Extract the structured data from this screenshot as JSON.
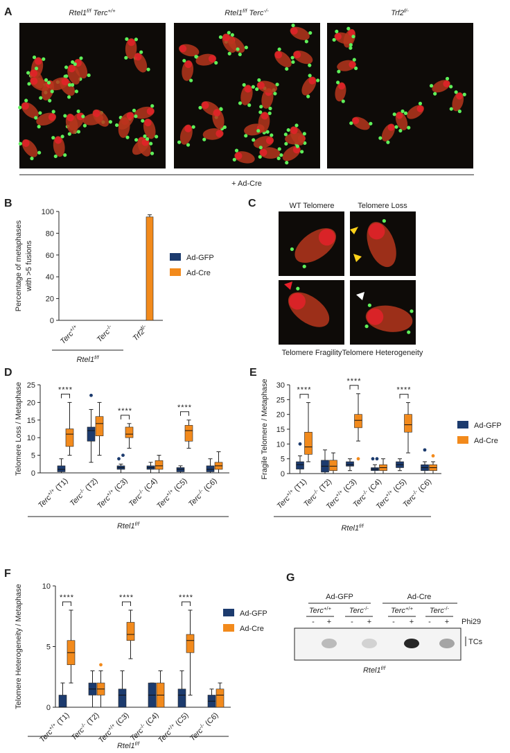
{
  "panels": {
    "A": {
      "label": "A",
      "titles": [
        [
          {
            "i": "Rtel1"
          },
          {
            "sup": "f/f"
          },
          {
            "i": " Terc"
          },
          {
            "sup": "+/+"
          }
        ],
        [
          {
            "i": "Rtel1"
          },
          {
            "sup": "f/f"
          },
          {
            "i": " Terc"
          },
          {
            "sup": "-/-"
          }
        ],
        [
          {
            "i": "Trf2"
          },
          {
            "sup": "f/-"
          }
        ]
      ],
      "treatment": "+ Ad-Cre"
    },
    "C": {
      "label": "C",
      "images": [
        "WT Telomere",
        "Telomere Loss",
        "Telomere Fragility",
        "Telomere Heterogeneity"
      ]
    },
    "G": {
      "label": "G",
      "groups": [
        "Ad-GFP",
        "Ad-Cre"
      ],
      "genotypes": [
        [
          {
            "i": "Terc"
          },
          {
            "sup": "+/+"
          }
        ],
        [
          {
            "i": "Terc"
          },
          {
            "sup": "-/-"
          }
        ],
        [
          {
            "i": "Terc"
          },
          {
            "sup": "+/+"
          }
        ],
        [
          {
            "i": "Terc"
          },
          {
            "sup": "-/-"
          }
        ]
      ],
      "lanes": [
        "-",
        "+",
        "-",
        "+",
        "-",
        "+",
        "-",
        "+"
      ],
      "enzyme": "Phi29",
      "band": "TCs",
      "footer": [
        {
          "i": "Rtel1"
        },
        {
          "sup": "f/f"
        }
      ]
    }
  },
  "chart_data": [
    {
      "type": "bar",
      "panel": "B",
      "ylabel": [
        "Percentage of metaphases",
        "with >5 fusions"
      ],
      "categories": [
        [
          {
            "i": "Terc"
          },
          {
            "sup": "+/+"
          }
        ],
        [
          {
            "i": "Terc"
          },
          {
            "sup": "-/-"
          }
        ],
        [
          {
            "i": "Trf2"
          },
          {
            "sup": "f/-"
          }
        ]
      ],
      "series": [
        {
          "name": "Ad-GFP",
          "color": "#1c3b6e",
          "values": [
            0,
            0,
            0
          ]
        },
        {
          "name": "Ad-Cre",
          "color": "#f28a1c",
          "values": [
            0,
            0,
            95
          ],
          "errors": [
            null,
            null,
            2
          ]
        }
      ],
      "ylim": [
        0,
        100
      ],
      "yticks": [
        0,
        20,
        40,
        60,
        80,
        100
      ],
      "group_label": [
        {
          "i": "Rtel1"
        },
        {
          "sup": "f/f"
        }
      ]
    },
    {
      "type": "box",
      "panel": "D",
      "ylabel": "Telomere Loss / Metaphase",
      "categories": [
        [
          {
            "i": "Terc"
          },
          {
            "sup": "+/+"
          },
          {
            "t": " (T1)"
          }
        ],
        [
          {
            "i": "Terc"
          },
          {
            "sup": "-/-"
          },
          {
            "t": " (T2)"
          }
        ],
        [
          {
            "i": "Terc"
          },
          {
            "sup": "+/+"
          },
          {
            "t": " (C3)"
          }
        ],
        [
          {
            "i": "Terc"
          },
          {
            "sup": "-/-"
          },
          {
            "t": " (C4)"
          }
        ],
        [
          {
            "i": "Terc"
          },
          {
            "sup": "+/+"
          },
          {
            "t": " (C5)"
          }
        ],
        [
          {
            "i": "Terc"
          },
          {
            "sup": "-/-"
          },
          {
            "t": " (C6)"
          }
        ]
      ],
      "significance": [
        "****",
        null,
        "****",
        null,
        "****",
        null
      ],
      "series": [
        {
          "color": "#1c3b6e",
          "boxes": [
            {
              "min": 0,
              "q1": 0.3,
              "median": 1,
              "q3": 2,
              "max": 4,
              "outliers": []
            },
            {
              "min": 3,
              "q1": 9,
              "median": 12,
              "q3": 13,
              "max": 18,
              "outliers": [
                22
              ]
            },
            {
              "min": 0,
              "q1": 1,
              "median": 1.5,
              "q3": 2,
              "max": 2.5,
              "outliers": [
                4,
                5
              ]
            },
            {
              "min": 0,
              "q1": 1,
              "median": 1.5,
              "q3": 2,
              "max": 3,
              "outliers": []
            },
            {
              "min": 0,
              "q1": 0.3,
              "median": 1,
              "q3": 1.5,
              "max": 2,
              "outliers": []
            },
            {
              "min": 0,
              "q1": 0.3,
              "median": 1,
              "q3": 2,
              "max": 4,
              "outliers": []
            }
          ]
        },
        {
          "color": "#f28a1c",
          "boxes": [
            {
              "min": 5,
              "q1": 7.5,
              "median": 11,
              "q3": 12.5,
              "max": 20,
              "outliers": []
            },
            {
              "min": 5,
              "q1": 10.5,
              "median": 14,
              "q3": 16,
              "max": 20,
              "outliers": []
            },
            {
              "min": 7,
              "q1": 10,
              "median": 11,
              "q3": 13,
              "max": 14,
              "outliers": []
            },
            {
              "min": 0,
              "q1": 1,
              "median": 2,
              "q3": 3.5,
              "max": 5,
              "outliers": []
            },
            {
              "min": 7,
              "q1": 9,
              "median": 12,
              "q3": 13.5,
              "max": 15,
              "outliers": []
            },
            {
              "min": 0,
              "q1": 1,
              "median": 2,
              "q3": 3,
              "max": 6,
              "outliers": []
            }
          ]
        }
      ],
      "ylim": [
        0,
        25
      ],
      "yticks": [
        0,
        5,
        10,
        15,
        20,
        25
      ],
      "group_label": [
        {
          "i": "Rtel1"
        },
        {
          "sup": "f/f"
        }
      ]
    },
    {
      "type": "box",
      "panel": "E",
      "ylabel": "Fragile Telomere / Metaphase",
      "categories": [
        [
          {
            "i": "Terc"
          },
          {
            "sup": "+/+"
          },
          {
            "t": " (T1)"
          }
        ],
        [
          {
            "i": "Terc"
          },
          {
            "sup": "-/-"
          },
          {
            "t": " (T2)"
          }
        ],
        [
          {
            "i": "Terc"
          },
          {
            "sup": "+/+"
          },
          {
            "t": " (C3)"
          }
        ],
        [
          {
            "i": "Terc"
          },
          {
            "sup": "-/-"
          },
          {
            "t": " (C4)"
          }
        ],
        [
          {
            "i": "Terc"
          },
          {
            "sup": "+/+"
          },
          {
            "t": " (C5)"
          }
        ],
        [
          {
            "i": "Terc"
          },
          {
            "sup": "-/-"
          },
          {
            "t": " (C6)"
          }
        ]
      ],
      "significance": [
        "****",
        null,
        "****",
        null,
        "****",
        null
      ],
      "series": [
        {
          "name": "Ad-GFP",
          "color": "#1c3b6e",
          "boxes": [
            {
              "min": 0,
              "q1": 1.5,
              "median": 3,
              "q3": 4,
              "max": 6,
              "outliers": [
                10
              ]
            },
            {
              "min": 0,
              "q1": 0.5,
              "median": 2.5,
              "q3": 4.5,
              "max": 8,
              "outliers": []
            },
            {
              "min": 1,
              "q1": 2.5,
              "median": 3,
              "q3": 4,
              "max": 5,
              "outliers": []
            },
            {
              "min": 0,
              "q1": 1,
              "median": 1.5,
              "q3": 2,
              "max": 3,
              "outliers": [
                5,
                5
              ]
            },
            {
              "min": 1,
              "q1": 2,
              "median": 3,
              "q3": 4,
              "max": 5,
              "outliers": []
            },
            {
              "min": 0,
              "q1": 1,
              "median": 2,
              "q3": 3,
              "max": 4,
              "outliers": [
                8
              ]
            }
          ]
        },
        {
          "name": "Ad-Cre",
          "color": "#f28a1c",
          "boxes": [
            {
              "min": 4,
              "q1": 6.5,
              "median": 9,
              "q3": 14,
              "max": 24,
              "outliers": []
            },
            {
              "min": 0,
              "q1": 1,
              "median": 2.5,
              "q3": 4.5,
              "max": 7,
              "outliers": []
            },
            {
              "min": 11,
              "q1": 15.5,
              "median": 18,
              "q3": 20,
              "max": 27,
              "outliers": [
                5
              ]
            },
            {
              "min": 0,
              "q1": 1,
              "median": 2,
              "q3": 3,
              "max": 5,
              "outliers": []
            },
            {
              "min": 7,
              "q1": 14,
              "median": 16.5,
              "q3": 20,
              "max": 24,
              "outliers": []
            },
            {
              "min": 0,
              "q1": 1,
              "median": 2,
              "q3": 3,
              "max": 4,
              "outliers": [
                6
              ]
            }
          ]
        }
      ],
      "ylim": [
        0,
        30
      ],
      "yticks": [
        0,
        5,
        10,
        15,
        20,
        25,
        30
      ],
      "group_label": [
        {
          "i": "Rtel1"
        },
        {
          "sup": "f/f"
        }
      ]
    },
    {
      "type": "box",
      "panel": "F",
      "ylabel": "Telomere Heterogeneity / Metaphase",
      "categories": [
        [
          {
            "i": "Terc"
          },
          {
            "sup": "+/+"
          },
          {
            "t": " (T1)"
          }
        ],
        [
          {
            "i": "Terc"
          },
          {
            "sup": "-/-"
          },
          {
            "t": " (T2)"
          }
        ],
        [
          {
            "i": "Terc"
          },
          {
            "sup": "+/+"
          },
          {
            "t": " (C3)"
          }
        ],
        [
          {
            "i": "Terc"
          },
          {
            "sup": "-/-"
          },
          {
            "t": " (C4)"
          }
        ],
        [
          {
            "i": "Terc"
          },
          {
            "sup": "+/+"
          },
          {
            "t": " (C5)"
          }
        ],
        [
          {
            "i": "Terc"
          },
          {
            "sup": "-/-"
          },
          {
            "t": " (C6)"
          }
        ]
      ],
      "significance": [
        "****",
        null,
        "****",
        null,
        "****",
        null
      ],
      "series": [
        {
          "name": "Ad-GFP",
          "color": "#1c3b6e",
          "boxes": [
            {
              "min": 0,
              "q1": 0,
              "median": 0,
              "q3": 1,
              "max": 2,
              "outliers": []
            },
            {
              "min": 0,
              "q1": 1,
              "median": 1.5,
              "q3": 2,
              "max": 3,
              "outliers": []
            },
            {
              "min": 0,
              "q1": 0,
              "median": 1,
              "q3": 1.5,
              "max": 3,
              "outliers": []
            },
            {
              "min": 0,
              "q1": 0,
              "median": 1,
              "q3": 2,
              "max": 2,
              "outliers": []
            },
            {
              "min": 0,
              "q1": 0,
              "median": 1,
              "q3": 1.5,
              "max": 3,
              "outliers": []
            },
            {
              "min": 0,
              "q1": 0,
              "median": 0.5,
              "q3": 1,
              "max": 1.5,
              "outliers": []
            }
          ]
        },
        {
          "name": "Ad-Cre",
          "color": "#f28a1c",
          "boxes": [
            {
              "min": 2,
              "q1": 3.5,
              "median": 4.5,
              "q3": 5.5,
              "max": 8,
              "outliers": []
            },
            {
              "min": 0,
              "q1": 1,
              "median": 1.5,
              "q3": 2,
              "max": 3,
              "outliers": [
                3.5
              ]
            },
            {
              "min": 4,
              "q1": 5.5,
              "median": 6,
              "q3": 7,
              "max": 8,
              "outliers": []
            },
            {
              "min": 0,
              "q1": 0,
              "median": 1,
              "q3": 2,
              "max": 3,
              "outliers": []
            },
            {
              "min": 1,
              "q1": 4.5,
              "median": 5.5,
              "q3": 6,
              "max": 8,
              "outliers": []
            },
            {
              "min": 0,
              "q1": 0,
              "median": 1,
              "q3": 1.5,
              "max": 2,
              "outliers": []
            }
          ]
        }
      ],
      "ylim": [
        0,
        10
      ],
      "yticks": [
        0,
        5,
        10
      ],
      "group_label": [
        {
          "i": "Rtel1"
        },
        {
          "sup": "f/f"
        }
      ]
    }
  ]
}
